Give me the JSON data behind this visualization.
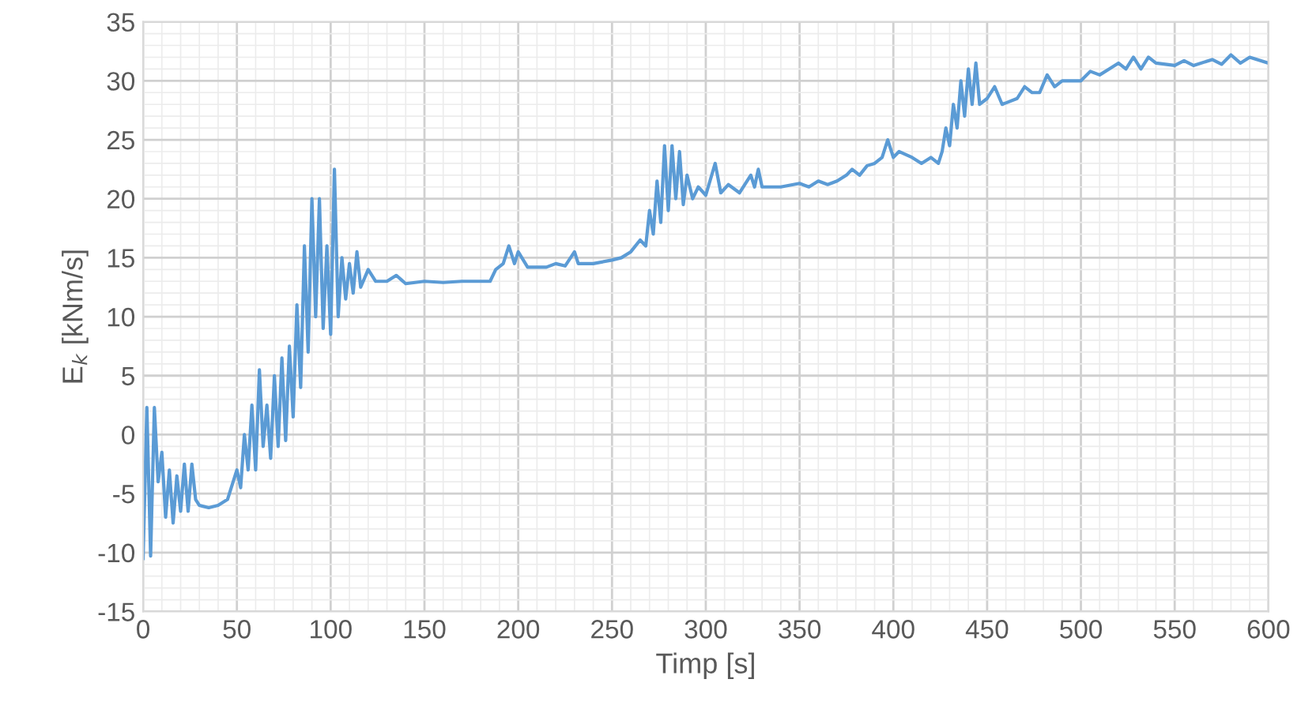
{
  "chart_data": {
    "type": "line",
    "xlabel": "Timp [s]",
    "ylabel": "E$_{k}$ [kNm/s]",
    "xlim": [
      0,
      600
    ],
    "xticks": [
      0,
      50,
      100,
      150,
      200,
      250,
      300,
      350,
      400,
      450,
      500,
      550,
      600
    ],
    "ylim": [
      -15,
      35
    ],
    "yticks": [
      -15,
      -10,
      -5,
      0,
      5,
      10,
      15,
      20,
      25,
      30,
      35
    ],
    "grid": true,
    "marker": "none",
    "line_style": "solid",
    "series": [
      {
        "color": "#5b9bd5",
        "x": [
          0,
          2,
          4,
          6,
          8,
          10,
          12,
          14,
          16,
          18,
          20,
          22,
          24,
          26,
          28,
          30,
          35,
          40,
          45,
          48,
          50,
          52,
          54,
          56,
          58,
          60,
          62,
          64,
          66,
          68,
          70,
          72,
          74,
          76,
          78,
          80,
          82,
          84,
          86,
          88,
          90,
          92,
          94,
          96,
          98,
          100,
          102,
          104,
          106,
          108,
          110,
          112,
          114,
          116,
          120,
          124,
          130,
          135,
          140,
          150,
          160,
          170,
          180,
          185,
          188,
          192,
          195,
          198,
          200,
          205,
          215,
          220,
          225,
          230,
          232,
          240,
          250,
          255,
          260,
          265,
          268,
          270,
          272,
          274,
          276,
          278,
          280,
          282,
          284,
          286,
          288,
          290,
          293,
          296,
          300,
          305,
          308,
          312,
          318,
          324,
          326,
          328,
          330,
          340,
          350,
          355,
          360,
          365,
          370,
          375,
          378,
          382,
          386,
          390,
          394,
          397,
          400,
          403,
          410,
          415,
          420,
          424,
          426,
          428,
          430,
          432,
          434,
          436,
          438,
          440,
          442,
          444,
          446,
          450,
          454,
          458,
          466,
          470,
          474,
          478,
          482,
          486,
          490,
          500,
          505,
          510,
          515,
          520,
          524,
          528,
          532,
          536,
          540,
          550,
          555,
          560,
          570,
          575,
          580,
          585,
          590,
          600
        ],
        "values": [
          -10.5,
          2.3,
          -10.3,
          2.3,
          -4,
          -1.5,
          -7,
          -3,
          -7.5,
          -3.5,
          -6.5,
          -2.5,
          -6.5,
          -2.5,
          -5.5,
          -6,
          -6.2,
          -6,
          -5.5,
          -4,
          -3,
          -4.5,
          0,
          -3,
          2.5,
          -3,
          5.5,
          -1,
          2.5,
          -2,
          5,
          -1,
          6.5,
          -0.5,
          7.5,
          1.5,
          11,
          4,
          16,
          7,
          20,
          10,
          20,
          9,
          16,
          8.5,
          22.5,
          10,
          15,
          11.5,
          14.5,
          12,
          15.5,
          12.5,
          14,
          13,
          13,
          13.5,
          12.8,
          13,
          12.9,
          13,
          13,
          13,
          14,
          14.5,
          16,
          14.5,
          15.5,
          14.2,
          14.2,
          14.5,
          14.3,
          15.5,
          14.5,
          14.5,
          14.8,
          15,
          15.5,
          16.5,
          16,
          19,
          17,
          21.5,
          18,
          24.5,
          19,
          24.5,
          20,
          24,
          19.5,
          22,
          20,
          21,
          20.3,
          23,
          20.5,
          21.2,
          20.5,
          22,
          21,
          22.5,
          21,
          21,
          21.3,
          21,
          21.5,
          21.2,
          21.5,
          22,
          22.5,
          22,
          22.8,
          23,
          23.5,
          25,
          23.5,
          24,
          23.5,
          23,
          23.5,
          23,
          24,
          26,
          24.5,
          28,
          26,
          30,
          27,
          31,
          28,
          31.5,
          28,
          28.5,
          29.5,
          28,
          28.5,
          29.5,
          29,
          29,
          30.5,
          29.5,
          30,
          30,
          30.8,
          30.5,
          31,
          31.5,
          31,
          32,
          31,
          32,
          31.5,
          31.3,
          31.7,
          31.3,
          31.8,
          31.4,
          32.2,
          31.5,
          32,
          31.5
        ]
      }
    ]
  }
}
